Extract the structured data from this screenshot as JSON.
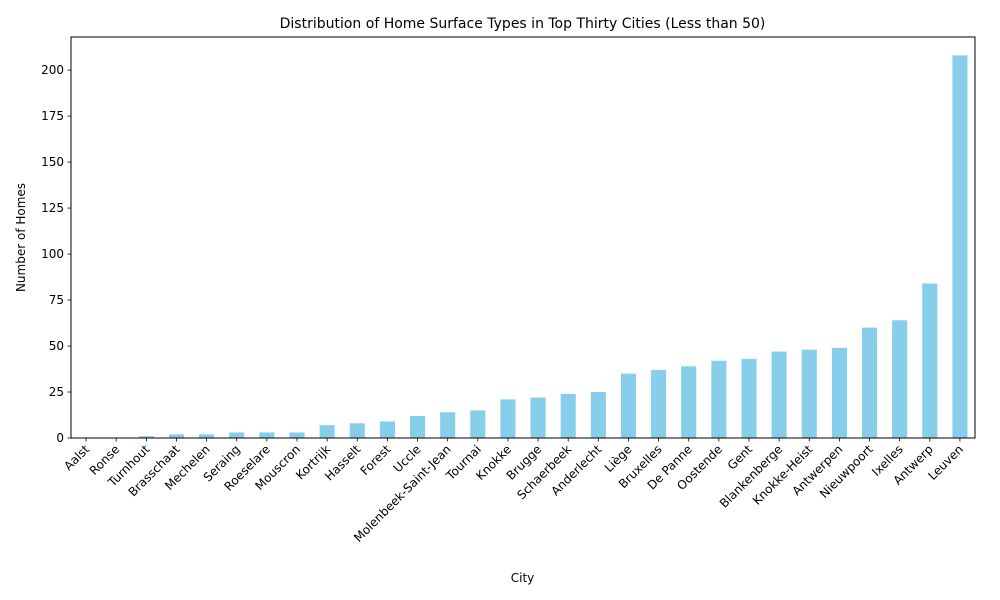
{
  "chart_data": {
    "type": "bar",
    "title": "Distribution of Home Surface Types in Top Thirty Cities (Less than 50)",
    "xlabel": "City",
    "ylabel": "Number of Homes",
    "categories": [
      "Aalst",
      "Ronse",
      "Turnhout",
      "Brasschaat",
      "Mechelen",
      "Seraing",
      "Roeselare",
      "Mouscron",
      "Kortrijk",
      "Hasselt",
      "Forest",
      "Uccle",
      "Molenbeek-Saint-Jean",
      "Tournai",
      "Knokke",
      "Brugge",
      "Schaerbeek",
      "Anderlecht",
      "Liège",
      "Bruxelles",
      "De Panne",
      "Oostende",
      "Gent",
      "Blankenberge",
      "Knokke-Heist",
      "Antwerpen",
      "Nieuwpoort",
      "Ixelles",
      "Antwerp",
      "Leuven"
    ],
    "values": [
      0,
      0,
      1,
      2,
      2,
      3,
      3,
      3,
      7,
      8,
      9,
      12,
      14,
      15,
      21,
      22,
      24,
      25,
      35,
      37,
      39,
      42,
      43,
      47,
      48,
      49,
      60,
      64,
      84,
      208
    ],
    "ylim": [
      0,
      218
    ],
    "yticks": [
      0,
      25,
      50,
      75,
      100,
      125,
      150,
      175,
      200
    ],
    "bar_color": "#87ceeb",
    "grid": false,
    "legend": "none"
  }
}
